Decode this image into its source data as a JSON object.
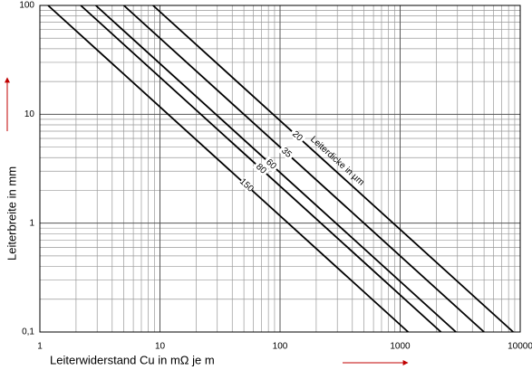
{
  "chart_data": {
    "type": "line",
    "xlabel": "Leiterwiderstand Cu in mΩ  je m",
    "ylabel": "Leiterbreite in mm",
    "annotation": "Leiterdicke in µm",
    "xlog": true,
    "ylog": true,
    "grid": true,
    "xlim": [
      1,
      10000
    ],
    "ylim": [
      0.1,
      100
    ],
    "xticks": [
      1,
      10,
      100,
      1000,
      10000
    ],
    "yticks": [
      {
        "value": 0.1,
        "label": "0,1"
      },
      1,
      10,
      100
    ],
    "xminorticks": [
      2,
      3,
      4,
      5,
      6,
      7,
      8,
      9,
      20,
      30,
      40,
      50,
      60,
      70,
      80,
      90,
      200,
      300,
      400,
      500,
      600,
      700,
      800,
      900,
      2000,
      3000,
      4000,
      5000,
      6000,
      7000,
      8000,
      9000
    ],
    "yminorticks": [
      0.2,
      0.3,
      0.4,
      0.5,
      0.6,
      0.7,
      0.8,
      0.9,
      2,
      3,
      4,
      5,
      6,
      7,
      8,
      9,
      20,
      30,
      40,
      50,
      60,
      70,
      80,
      90
    ],
    "series": [
      {
        "name": "20",
        "color": "#000000",
        "x": [
          8.75,
          8750
        ],
        "values": [
          100,
          0.1
        ]
      },
      {
        "name": "35",
        "color": "#000000",
        "x": [
          5,
          5000
        ],
        "values": [
          100,
          0.1
        ]
      },
      {
        "name": "60",
        "color": "#000000",
        "x": [
          2.92,
          2917
        ],
        "values": [
          100,
          0.1
        ]
      },
      {
        "name": "80",
        "color": "#000000",
        "x": [
          2.19,
          2188
        ],
        "values": [
          100,
          0.1
        ]
      },
      {
        "name": "150",
        "color": "#000000",
        "x": [
          1.17,
          1167
        ],
        "values": [
          100,
          0.1
        ]
      }
    ]
  }
}
